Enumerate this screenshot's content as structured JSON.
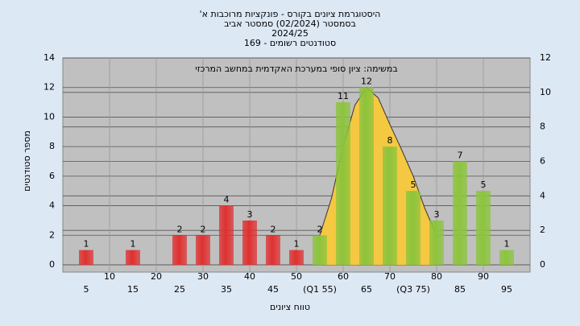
{
  "chart_data": {
    "type": "bar",
    "title_lines": [
      "היסטוגרמת ציונים בקורס - פונקציות מרוכבות א'",
      "בסמסטר  (02/2024)  סמסטר אביב",
      "2024/25",
      "סטודנטים רשומים - 169"
    ],
    "annotation": "במשימה: ציון סופי במערכת האקדמית במחשב המרכזי",
    "ylabel": "מספר סטודנטים",
    "xlabel": "טווח ציונים",
    "x": [
      5,
      10,
      15,
      20,
      25,
      30,
      35,
      40,
      45,
      50,
      55,
      60,
      65,
      70,
      75,
      80,
      85,
      90,
      95
    ],
    "x_labels": [
      "5",
      "10",
      "15",
      "20",
      "25",
      "30",
      "35",
      "40",
      "45",
      "50",
      "(Q1 55)",
      "60",
      "65",
      "70",
      "(Q3 75)",
      "80",
      "85",
      "90",
      "95"
    ],
    "values": [
      1,
      0,
      1,
      0,
      2,
      2,
      4,
      3,
      2,
      1,
      2,
      11,
      12,
      8,
      5,
      3,
      7,
      5,
      1
    ],
    "colors": [
      "#e03030",
      "#e03030",
      "#e03030",
      "#e03030",
      "#e03030",
      "#e03030",
      "#e03030",
      "#e03030",
      "#e03030",
      "#e03030",
      "#8cc43c",
      "#8cc43c",
      "#8cc43c",
      "#8cc43c",
      "#8cc43c",
      "#8cc43c",
      "#8cc43c",
      "#8cc43c",
      "#8cc43c"
    ],
    "curve": {
      "color": "#f5c842",
      "x": [
        55,
        57.5,
        60,
        62.5,
        65,
        67.5,
        70,
        72.5,
        75,
        77.5,
        80
      ],
      "values": [
        2,
        4.5,
        8,
        10.8,
        12,
        11.3,
        9.5,
        7.8,
        6,
        3.8,
        2
      ]
    },
    "xlim": [
      0,
      100
    ],
    "ylim": [
      0,
      14
    ],
    "yticks": [
      0,
      2,
      4,
      6,
      8,
      10,
      12,
      14
    ],
    "y2lim": [
      0,
      12
    ],
    "y2ticks": [
      0,
      2,
      4,
      6,
      8,
      10,
      12
    ],
    "grid": true
  }
}
